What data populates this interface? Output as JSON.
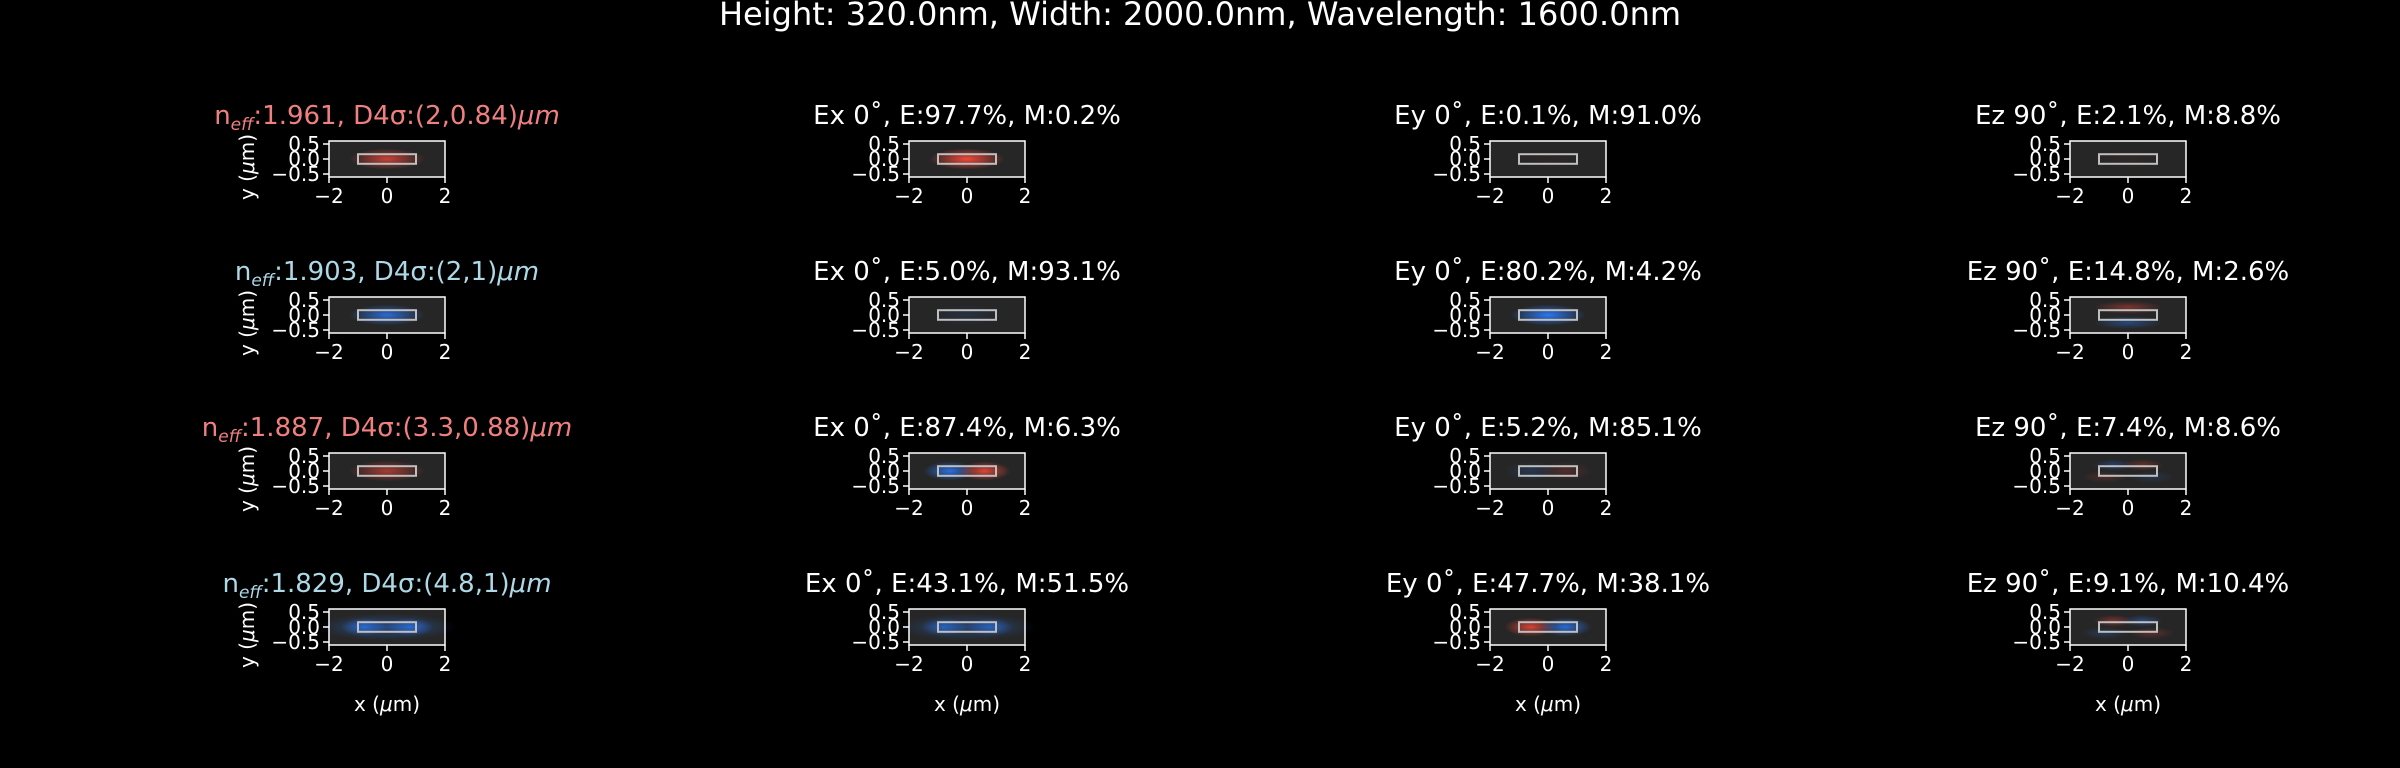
{
  "suptitle": "Height: 320.0nm, Width: 2000.0nm, Wavelength: 1600.0nm",
  "colors": {
    "background": "#000000",
    "positive_field": "#ff4a3a",
    "negative_field": "#2a7cff",
    "title_red": "#f08080",
    "title_blue": "#add8e6"
  },
  "chart_data": {
    "type": "heatmap",
    "x_ticks": [
      "−2",
      "0",
      "2"
    ],
    "y_ticks": [
      "0.5",
      "0.0",
      "−0.5"
    ],
    "xlabel": "x (μm)",
    "ylabel": "y (μm)",
    "xlim": [
      -2,
      2
    ],
    "ylim": [
      -0.6,
      0.6
    ],
    "waveguide": {
      "width_um": 2.0,
      "height_um": 0.32
    },
    "columns": [
      "mode",
      "Ex",
      "Ey",
      "Ez"
    ],
    "modes": [
      {
        "neff_prefix": "n",
        "neff_sub": "eff",
        "neff_rest": ":1.961, D4σ:(2,0.84)",
        "unit": "μm",
        "title_color": "red",
        "panels": [
          {
            "title": "",
            "pattern": "center",
            "sign": 1,
            "amp": 0.75
          },
          {
            "title": "Ex 0˚, E:97.7%, M:0.2%",
            "pattern": "center",
            "sign": 1,
            "amp": 0.95
          },
          {
            "title": "Ey 0˚, E:0.1%, M:91.0%",
            "pattern": "center",
            "sign": 1,
            "amp": 0.03
          },
          {
            "title": "Ez 90˚, E:2.1%, M:8.8%",
            "pattern": "center",
            "sign": 1,
            "amp": 0.05
          }
        ]
      },
      {
        "neff_prefix": "n",
        "neff_sub": "eff",
        "neff_rest": ":1.903, D4σ:(2,1)",
        "unit": "μm",
        "title_color": "blue",
        "panels": [
          {
            "title": "",
            "pattern": "center",
            "sign": -1,
            "amp": 0.8
          },
          {
            "title": "Ex 0˚, E:5.0%, M:93.1%",
            "pattern": "center",
            "sign": -1,
            "amp": 0.12
          },
          {
            "title": "Ey 0˚, E:80.2%, M:4.2%",
            "pattern": "center",
            "sign": -1,
            "amp": 0.95
          },
          {
            "title": "Ez 90˚, E:14.8%, M:2.6%",
            "pattern": "vertical",
            "sign": 1,
            "amp": 0.4
          }
        ]
      },
      {
        "neff_prefix": "n",
        "neff_sub": "eff",
        "neff_rest": ":1.887, D4σ:(3.3,0.88)",
        "unit": "μm",
        "title_color": "red",
        "panels": [
          {
            "title": "",
            "pattern": "center",
            "sign": 1,
            "amp": 0.6
          },
          {
            "title": "Ex 0˚, E:87.4%, M:6.3%",
            "pattern": "horizontal",
            "sign": 1,
            "amp": 0.85
          },
          {
            "title": "Ey 0˚, E:5.2%, M:85.1%",
            "pattern": "horizontal",
            "sign": 1,
            "amp": 0.2
          },
          {
            "title": "Ez 90˚, E:7.4%, M:8.6%",
            "pattern": "quad",
            "sign": 1,
            "amp": 0.3
          }
        ]
      },
      {
        "neff_prefix": "n",
        "neff_sub": "eff",
        "neff_rest": ":1.829, D4σ:(4.8,1)",
        "unit": "μm",
        "title_color": "blue",
        "panels": [
          {
            "title": "",
            "pattern": "wide",
            "sign": -1,
            "amp": 0.7
          },
          {
            "title": "Ex 0˚, E:43.1%, M:51.5%",
            "pattern": "wide",
            "sign": -1,
            "amp": 0.6
          },
          {
            "title": "Ey 0˚, E:47.7%, M:38.1%",
            "pattern": "horizontal",
            "sign": -1,
            "amp": 0.8
          },
          {
            "title": "Ez 90˚, E:9.1%, M:10.4%",
            "pattern": "quad",
            "sign": -1,
            "amp": 0.4
          }
        ]
      }
    ]
  }
}
